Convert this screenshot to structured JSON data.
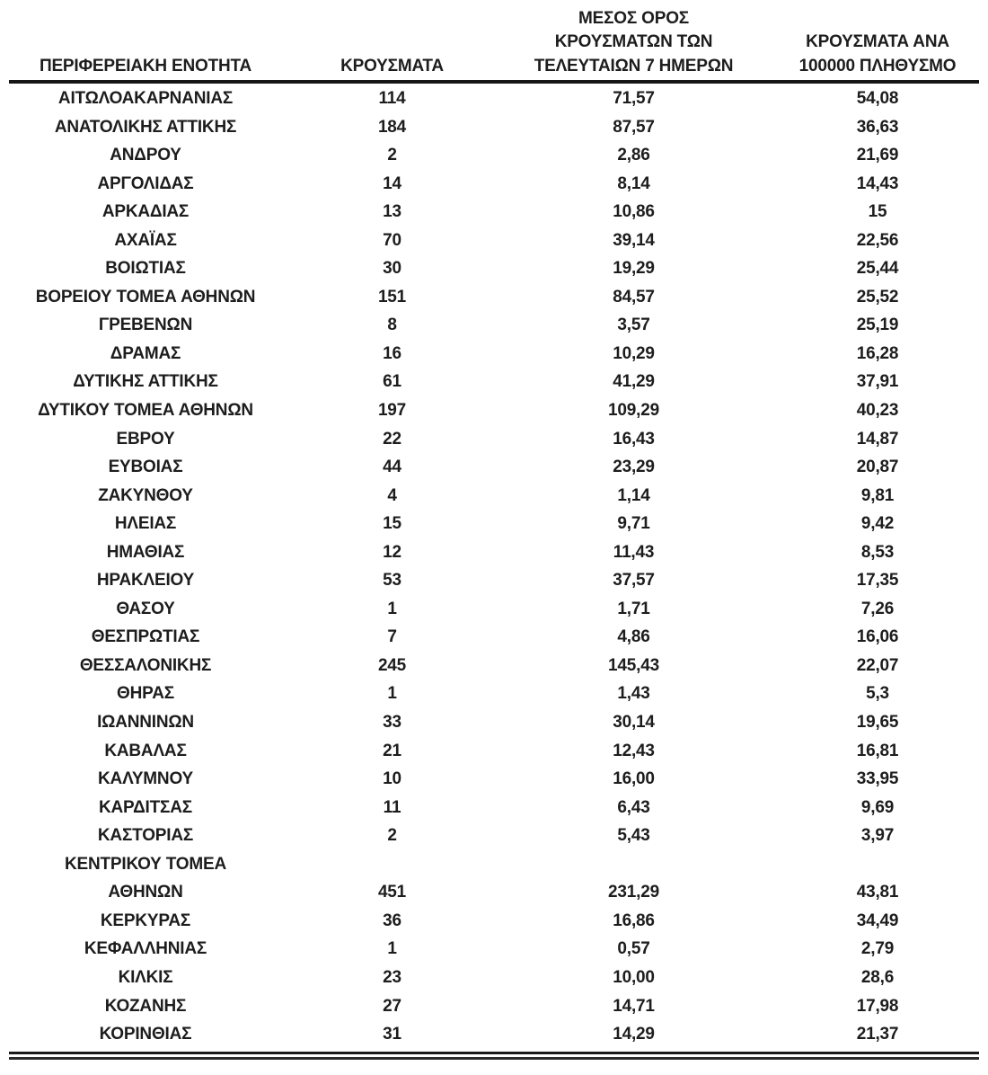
{
  "colors": {
    "background": "#ffffff",
    "text": "#1d1d1d",
    "rule": "#161616"
  },
  "table": {
    "headers": [
      "ΠΕΡΙΦΕΡΕΙΑΚΗ ΕΝΟΤΗΤΑ",
      "ΚΡΟΥΣΜΑΤΑ",
      "ΜΕΣΟΣ ΟΡΟΣ\nΚΡΟΥΣΜΑΤΩΝ ΤΩΝ\nΤΕΛΕΥΤΑΙΩΝ 7 ΗΜΕΡΩΝ",
      "ΚΡΟΥΣΜΑΤΑ ΑΝΑ\n100000 ΠΛΗΘΥΣΜΟ"
    ],
    "rows": [
      {
        "region": "ΑΙΤΩΛΟΑΚΑΡΝΑΝΙΑΣ",
        "cases": "114",
        "avg7": "71,57",
        "per100k": "54,08"
      },
      {
        "region": "ΑΝΑΤΟΛΙΚΗΣ ΑΤΤΙΚΗΣ",
        "cases": "184",
        "avg7": "87,57",
        "per100k": "36,63"
      },
      {
        "region": "ΑΝΔΡΟΥ",
        "cases": "2",
        "avg7": "2,86",
        "per100k": "21,69"
      },
      {
        "region": "ΑΡΓΟΛΙΔΑΣ",
        "cases": "14",
        "avg7": "8,14",
        "per100k": "14,43"
      },
      {
        "region": "ΑΡΚΑΔΙΑΣ",
        "cases": "13",
        "avg7": "10,86",
        "per100k": "15"
      },
      {
        "region": "ΑΧΑΪΑΣ",
        "cases": "70",
        "avg7": "39,14",
        "per100k": "22,56"
      },
      {
        "region": "ΒΟΙΩΤΙΑΣ",
        "cases": "30",
        "avg7": "19,29",
        "per100k": "25,44"
      },
      {
        "region": "ΒΟΡΕΙΟΥ ΤΟΜΕΑ ΑΘΗΝΩΝ",
        "cases": "151",
        "avg7": "84,57",
        "per100k": "25,52"
      },
      {
        "region": "ΓΡΕΒΕΝΩΝ",
        "cases": "8",
        "avg7": "3,57",
        "per100k": "25,19"
      },
      {
        "region": "ΔΡΑΜΑΣ",
        "cases": "16",
        "avg7": "10,29",
        "per100k": "16,28"
      },
      {
        "region": "ΔΥΤΙΚΗΣ ΑΤΤΙΚΗΣ",
        "cases": "61",
        "avg7": "41,29",
        "per100k": "37,91"
      },
      {
        "region": "ΔΥΤΙΚΟΥ ΤΟΜΕΑ ΑΘΗΝΩΝ",
        "cases": "197",
        "avg7": "109,29",
        "per100k": "40,23"
      },
      {
        "region": "ΕΒΡΟΥ",
        "cases": "22",
        "avg7": "16,43",
        "per100k": "14,87"
      },
      {
        "region": "ΕΥΒΟΙΑΣ",
        "cases": "44",
        "avg7": "23,29",
        "per100k": "20,87"
      },
      {
        "region": "ΖΑΚΥΝΘΟΥ",
        "cases": "4",
        "avg7": "1,14",
        "per100k": "9,81"
      },
      {
        "region": "ΗΛΕΙΑΣ",
        "cases": "15",
        "avg7": "9,71",
        "per100k": "9,42"
      },
      {
        "region": "ΗΜΑΘΙΑΣ",
        "cases": "12",
        "avg7": "11,43",
        "per100k": "8,53"
      },
      {
        "region": "ΗΡΑΚΛΕΙΟΥ",
        "cases": "53",
        "avg7": "37,57",
        "per100k": "17,35"
      },
      {
        "region": "ΘΑΣΟΥ",
        "cases": "1",
        "avg7": "1,71",
        "per100k": "7,26"
      },
      {
        "region": "ΘΕΣΠΡΩΤΙΑΣ",
        "cases": "7",
        "avg7": "4,86",
        "per100k": "16,06"
      },
      {
        "region": "ΘΕΣΣΑΛΟΝΙΚΗΣ",
        "cases": "245",
        "avg7": "145,43",
        "per100k": "22,07"
      },
      {
        "region": "ΘΗΡΑΣ",
        "cases": "1",
        "avg7": "1,43",
        "per100k": "5,3"
      },
      {
        "region": "ΙΩΑΝΝΙΝΩΝ",
        "cases": "33",
        "avg7": "30,14",
        "per100k": "19,65"
      },
      {
        "region": "ΚΑΒΑΛΑΣ",
        "cases": "21",
        "avg7": "12,43",
        "per100k": "16,81"
      },
      {
        "region": "ΚΑΛΥΜΝΟΥ",
        "cases": "10",
        "avg7": "16,00",
        "per100k": "33,95"
      },
      {
        "region": "ΚΑΡΔΙΤΣΑΣ",
        "cases": "11",
        "avg7": "6,43",
        "per100k": "9,69"
      },
      {
        "region": "ΚΑΣΤΟΡΙΑΣ",
        "cases": "2",
        "avg7": "5,43",
        "per100k": "3,97"
      },
      {
        "region": "ΚΕΝΤΡΙΚΟΥ ΤΟΜΕΑ\nΑΘΗΝΩΝ",
        "cases": "451",
        "avg7": "231,29",
        "per100k": "43,81"
      },
      {
        "region": "ΚΕΡΚΥΡΑΣ",
        "cases": "36",
        "avg7": "16,86",
        "per100k": "34,49"
      },
      {
        "region": "ΚΕΦΑΛΛΗΝΙΑΣ",
        "cases": "1",
        "avg7": "0,57",
        "per100k": "2,79"
      },
      {
        "region": "ΚΙΛΚΙΣ",
        "cases": "23",
        "avg7": "10,00",
        "per100k": "28,6"
      },
      {
        "region": "ΚΟΖΑΝΗΣ",
        "cases": "27",
        "avg7": "14,71",
        "per100k": "17,98"
      },
      {
        "region": "ΚΟΡΙΝΘΙΑΣ",
        "cases": "31",
        "avg7": "14,29",
        "per100k": "21,37"
      }
    ]
  }
}
